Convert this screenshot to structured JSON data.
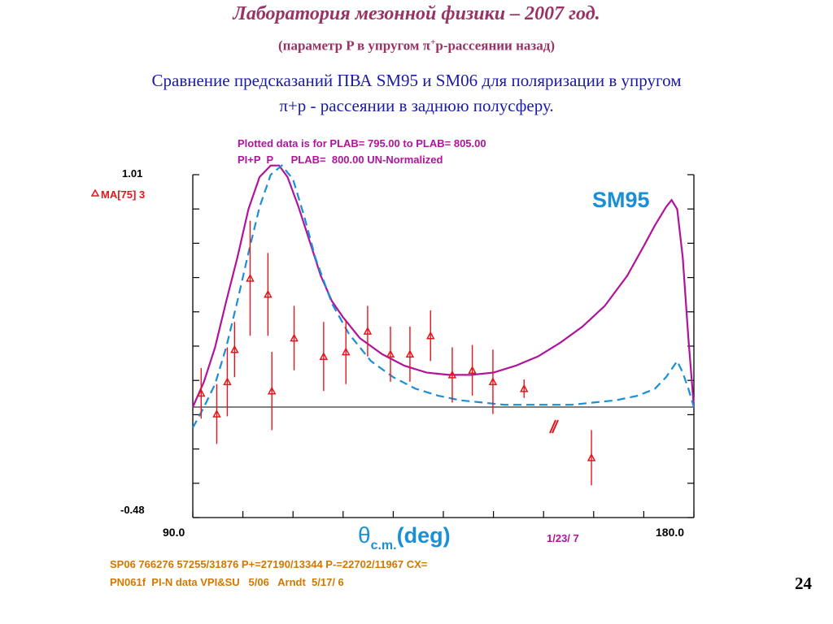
{
  "slide": {
    "title": "Лаборатория мезонной физики – 2007 год.",
    "subtitle_pre": "(параметр P в упругом π",
    "subtitle_sup": "+",
    "subtitle_post": "p-рассеянии назад)",
    "desc_line1": "Сравнение предсказаний ПВА SM95 и SM06 для поляризации в  упругом",
    "desc_line2": "π+p - рассеянии в заднюю полусферу.",
    "page_number": "24"
  },
  "chart_data": {
    "type": "scatter",
    "header_line1": "Plotted data is for PLAB= 795.00 to PLAB= 805.00",
    "header_line2": "PI+P  P      PLAB=  800.00 UN-Normalized",
    "model_label": "SM95",
    "legend_label": "MA[75] 3",
    "y_top_label": "1.01",
    "y_bottom_label": "-0.48",
    "x_left_label": "90.0",
    "x_right_label": "180.0",
    "xlabel_main": "θ",
    "xlabel_sub": "c.m.",
    "xlabel_unit": "(deg)",
    "date_label": "1/23/ 7",
    "footer_line1": "SP06 766276 57255/31876 P+=27190/13344 P-=22702/11967 CX=",
    "footer_line2": "PN061f  PI-N data VPI&SU   5/06   Arndt  5/17/ 6",
    "xlim": [
      90.0,
      180.0
    ],
    "ylim": [
      -0.48,
      1.01
    ],
    "colors": {
      "solid": "#b0149c",
      "dashed": "#1a8fd6",
      "data": "#e8141c",
      "axis_labels": "#000000",
      "header": "#b0149c",
      "footer": "#d27800"
    },
    "series": [
      {
        "name": "SM95",
        "style": "solid",
        "x": [
          90,
          92,
          94,
          96,
          98,
          100,
          102,
          104,
          105.5,
          107,
          109,
          111,
          113,
          115,
          117,
          120,
          124,
          128,
          132,
          136,
          140,
          144,
          148,
          152,
          156,
          160,
          164,
          168,
          171,
          173,
          175,
          176,
          177,
          178,
          179,
          180
        ],
        "y": [
          0.0,
          0.11,
          0.26,
          0.46,
          0.65,
          0.86,
          1.0,
          1.05,
          1.05,
          1.0,
          0.87,
          0.72,
          0.57,
          0.46,
          0.39,
          0.3,
          0.23,
          0.18,
          0.15,
          0.14,
          0.14,
          0.15,
          0.18,
          0.22,
          0.28,
          0.35,
          0.44,
          0.57,
          0.7,
          0.79,
          0.87,
          0.9,
          0.86,
          0.65,
          0.3,
          0.0
        ]
      },
      {
        "name": "SM06",
        "style": "dashed",
        "x": [
          90,
          92,
          94,
          96,
          98,
          100,
          102,
          104,
          106,
          108,
          110,
          112,
          115,
          118,
          122,
          126,
          130,
          134,
          138,
          142,
          146,
          150,
          154,
          158,
          162,
          166,
          170,
          173,
          175,
          177,
          178,
          179,
          180
        ],
        "y": [
          -0.09,
          0.0,
          0.1,
          0.26,
          0.46,
          0.67,
          0.87,
          1.01,
          1.05,
          0.99,
          0.83,
          0.65,
          0.45,
          0.32,
          0.2,
          0.13,
          0.08,
          0.05,
          0.03,
          0.02,
          0.01,
          0.01,
          0.01,
          0.01,
          0.02,
          0.03,
          0.05,
          0.08,
          0.13,
          0.2,
          0.15,
          0.08,
          0.0
        ]
      },
      {
        "name": "MA[75] 3",
        "style": "points",
        "x": [
          91.5,
          94.3,
          96.2,
          97.5,
          100.3,
          103.5,
          104.2,
          108.2,
          113.5,
          117.5,
          121.4,
          125.5,
          129.0,
          132.7,
          136.6,
          140.2,
          143.9,
          149.5,
          161.6
        ],
        "y": [
          0.06,
          -0.03,
          0.11,
          0.25,
          0.56,
          0.49,
          0.07,
          0.3,
          0.22,
          0.24,
          0.33,
          0.23,
          0.23,
          0.31,
          0.14,
          0.16,
          0.11,
          0.08,
          -0.22
        ],
        "err": [
          0.11,
          0.13,
          0.15,
          0.12,
          0.25,
          0.18,
          0.17,
          0.14,
          0.15,
          0.14,
          0.11,
          0.12,
          0.12,
          0.11,
          0.12,
          0.11,
          0.14,
          0.04,
          0.12
        ]
      }
    ]
  }
}
